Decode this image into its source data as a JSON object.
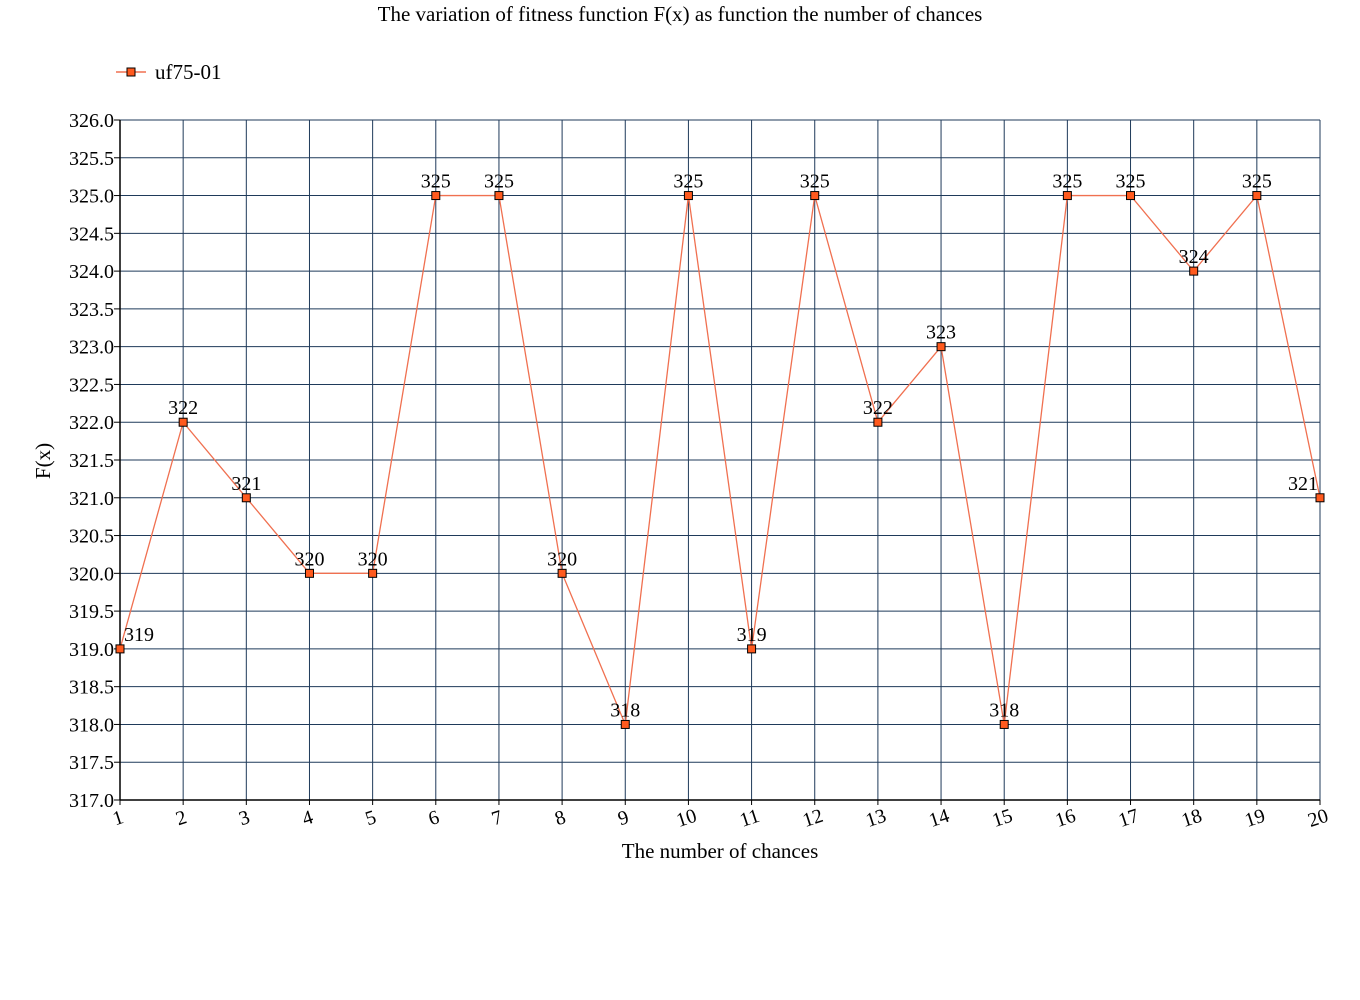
{
  "chart_data": {
    "type": "line",
    "title": "The variation of fitness function F(x) as function the number of chances",
    "xlabel": "The number of chances",
    "ylabel": "F(x)",
    "categories": [
      "1",
      "2",
      "3",
      "4",
      "5",
      "6",
      "7",
      "8",
      "9",
      "10",
      "11",
      "12",
      "13",
      "14",
      "15",
      "16",
      "17",
      "18",
      "19",
      "20"
    ],
    "series": [
      {
        "name": "uf75-01",
        "values": [
          319,
          322,
          321,
          320,
          320,
          325,
          325,
          320,
          318,
          325,
          319,
          325,
          322,
          323,
          318,
          325,
          325,
          324,
          325,
          321
        ],
        "color": "#f07050",
        "marker_fill": "#ff5a1e",
        "marker": "square",
        "data_labels": [
          "319",
          "322",
          "321",
          "320",
          "320",
          "325",
          "325",
          "320",
          "318",
          "325",
          "319",
          "325",
          "322",
          "323",
          "318",
          "325",
          "325",
          "324",
          "325",
          "321"
        ]
      }
    ],
    "ylim": [
      317,
      326
    ],
    "y_step": 0.5,
    "y_tick_labels": [
      "317.0",
      "317.5",
      "318.0",
      "318.5",
      "319.0",
      "319.5",
      "320.0",
      "320.5",
      "321.0",
      "321.5",
      "322.0",
      "322.5",
      "323.0",
      "323.5",
      "324.0",
      "324.5",
      "325.0",
      "325.5",
      "326.0"
    ],
    "grid": true,
    "grid_color": "#1f3a5a",
    "legend_position": "top-left"
  }
}
